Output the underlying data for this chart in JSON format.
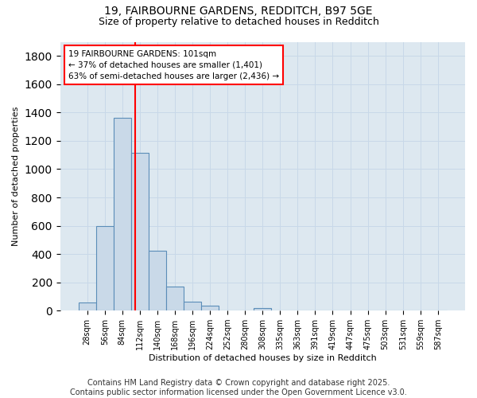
{
  "title1": "19, FAIRBOURNE GARDENS, REDDITCH, B97 5GE",
  "title2": "Size of property relative to detached houses in Redditch",
  "xlabel": "Distribution of detached houses by size in Redditch",
  "ylabel": "Number of detached properties",
  "categories": [
    "28sqm",
    "56sqm",
    "84sqm",
    "112sqm",
    "140sqm",
    "168sqm",
    "196sqm",
    "224sqm",
    "252sqm",
    "280sqm",
    "308sqm",
    "335sqm",
    "363sqm",
    "391sqm",
    "419sqm",
    "447sqm",
    "475sqm",
    "503sqm",
    "531sqm",
    "559sqm",
    "587sqm"
  ],
  "values": [
    55,
    600,
    1360,
    1115,
    425,
    170,
    65,
    35,
    0,
    0,
    20,
    0,
    0,
    0,
    0,
    0,
    0,
    0,
    0,
    0,
    0
  ],
  "bar_color": "#c9d9e8",
  "bar_edge_color": "#5b8db8",
  "vline_position": 2.73,
  "vline_color": "red",
  "annotation_text": "19 FAIRBOURNE GARDENS: 101sqm\n← 37% of detached houses are smaller (1,401)\n63% of semi-detached houses are larger (2,436) →",
  "annotation_box_color": "white",
  "annotation_box_edge": "red",
  "ylim": [
    0,
    1900
  ],
  "yticks": [
    0,
    200,
    400,
    600,
    800,
    1000,
    1200,
    1400,
    1600,
    1800
  ],
  "grid_color": "#c8d8e8",
  "background_color": "#dde8f0",
  "footer": "Contains HM Land Registry data © Crown copyright and database right 2025.\nContains public sector information licensed under the Open Government Licence v3.0.",
  "footer_fontsize": 7,
  "title1_fontsize": 10,
  "title2_fontsize": 9,
  "ylabel_fontsize": 8,
  "xlabel_fontsize": 8,
  "tick_fontsize": 7,
  "ann_fontsize": 7.5
}
